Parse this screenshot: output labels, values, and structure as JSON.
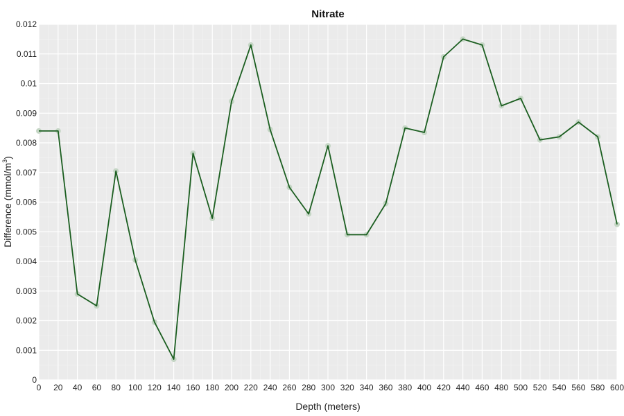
{
  "chart_data": {
    "type": "line",
    "title": "Nitrate",
    "xlabel": "Depth (meters)",
    "ylabel_main": "Difference (mmol/m",
    "ylabel_sup": "3",
    "ylabel_end": ")",
    "xlim": [
      0,
      600
    ],
    "ylim": [
      0,
      0.012
    ],
    "x_ticks": [
      0,
      20,
      40,
      60,
      80,
      100,
      120,
      140,
      160,
      180,
      200,
      220,
      240,
      260,
      280,
      300,
      320,
      340,
      360,
      380,
      400,
      420,
      440,
      460,
      480,
      500,
      520,
      540,
      560,
      580,
      600
    ],
    "y_ticks": [
      {
        "value": 0,
        "label": "0"
      },
      {
        "value": 0.001,
        "label": "0.001"
      },
      {
        "value": 0.002,
        "label": "0.002"
      },
      {
        "value": 0.003,
        "label": "0.003"
      },
      {
        "value": 0.004,
        "label": "0.004"
      },
      {
        "value": 0.005,
        "label": "0.005"
      },
      {
        "value": 0.006,
        "label": "0.006"
      },
      {
        "value": 0.007,
        "label": "0.007"
      },
      {
        "value": 0.008,
        "label": "0.008"
      },
      {
        "value": 0.009,
        "label": "0.009"
      },
      {
        "value": 0.01,
        "label": "0.01"
      },
      {
        "value": 0.011,
        "label": "0.011"
      },
      {
        "value": 0.012,
        "label": "0.012"
      }
    ],
    "grid": true,
    "series": [
      {
        "color": "#1b5e20",
        "marker_color": "#c5d6c5",
        "x": [
          0,
          20,
          40,
          60,
          80,
          100,
          120,
          140,
          160,
          180,
          200,
          220,
          240,
          260,
          280,
          300,
          320,
          340,
          360,
          380,
          400,
          420,
          440,
          460,
          480,
          500,
          520,
          540,
          560,
          580,
          600
        ],
        "y": [
          0.0084,
          0.0084,
          0.0029,
          0.0025,
          0.00705,
          0.00405,
          0.00195,
          0.0007,
          0.00765,
          0.00545,
          0.0094,
          0.0113,
          0.00845,
          0.0065,
          0.0056,
          0.0079,
          0.0049,
          0.0049,
          0.00595,
          0.0085,
          0.00835,
          0.0109,
          0.0115,
          0.0113,
          0.00925,
          0.0095,
          0.0081,
          0.0082,
          0.0087,
          0.0082,
          0.00525
        ]
      }
    ]
  }
}
